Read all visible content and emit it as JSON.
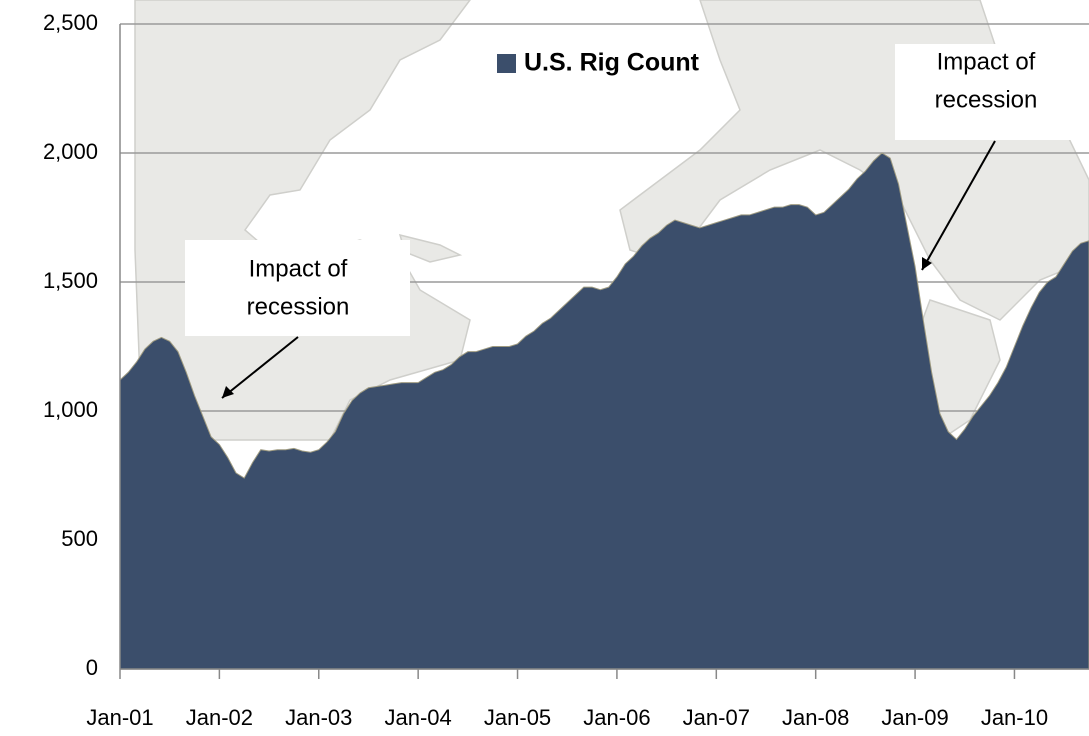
{
  "chart_data": {
    "type": "area",
    "series": [
      {
        "name": "U.S. Rig Count",
        "color": "#3b4e6b",
        "values": [
          1120,
          1150,
          1190,
          1240,
          1270,
          1285,
          1270,
          1230,
          1150,
          1060,
          980,
          900,
          870,
          820,
          760,
          740,
          800,
          850,
          845,
          850,
          850,
          855,
          845,
          840,
          850,
          880,
          920,
          990,
          1040,
          1070,
          1090,
          1095,
          1100,
          1105,
          1110,
          1110,
          1110,
          1130,
          1150,
          1160,
          1180,
          1210,
          1230,
          1230,
          1240,
          1250,
          1250,
          1250,
          1260,
          1290,
          1310,
          1340,
          1360,
          1390,
          1420,
          1450,
          1480,
          1480,
          1470,
          1480,
          1520,
          1570,
          1600,
          1640,
          1670,
          1690,
          1720,
          1740,
          1730,
          1720,
          1710,
          1720,
          1730,
          1740,
          1750,
          1760,
          1760,
          1770,
          1780,
          1790,
          1790,
          1800,
          1800,
          1790,
          1760,
          1770,
          1800,
          1830,
          1860,
          1900,
          1930,
          1970,
          2000,
          1980,
          1880,
          1720,
          1560,
          1350,
          1150,
          990,
          920,
          890,
          930,
          980,
          1020,
          1060,
          1110,
          1170,
          1250,
          1330,
          1400,
          1460,
          1500,
          1520,
          1570,
          1620,
          1650,
          1660
        ]
      }
    ],
    "categories": [
      "Jan-01",
      null,
      null,
      null,
      null,
      null,
      null,
      null,
      null,
      null,
      null,
      null,
      "Jan-02",
      null,
      null,
      null,
      null,
      null,
      null,
      null,
      null,
      null,
      null,
      null,
      "Jan-03",
      null,
      null,
      null,
      null,
      null,
      null,
      null,
      null,
      null,
      null,
      null,
      "Jan-04",
      null,
      null,
      null,
      null,
      null,
      null,
      null,
      null,
      null,
      null,
      null,
      "Jan-05",
      null,
      null,
      null,
      null,
      null,
      null,
      null,
      null,
      null,
      null,
      null,
      "Jan-06",
      null,
      null,
      null,
      null,
      null,
      null,
      null,
      null,
      null,
      null,
      null,
      "Jan-07",
      null,
      null,
      null,
      null,
      null,
      null,
      null,
      null,
      null,
      null,
      null,
      "Jan-08",
      null,
      null,
      null,
      null,
      null,
      null,
      null,
      null,
      null,
      null,
      null,
      "Jan-09",
      null,
      null,
      null,
      null,
      null,
      null,
      null,
      null,
      null,
      null,
      null,
      "Jan-10",
      null,
      null,
      null,
      null,
      null,
      null,
      null,
      null,
      null
    ],
    "ylim": [
      0,
      2500
    ],
    "yticks": [
      0,
      500,
      {
        "value": 1000,
        "label": "1,000"
      },
      {
        "value": 1500,
        "label": "1,500"
      },
      {
        "value": 2000,
        "label": "2,000"
      },
      {
        "value": 2500,
        "label": "2,500"
      }
    ],
    "grid": true,
    "annotations": [
      {
        "lines": [
          "Impact of",
          "recession"
        ]
      },
      {
        "lines": [
          "Impact of",
          "recession"
        ]
      }
    ]
  }
}
